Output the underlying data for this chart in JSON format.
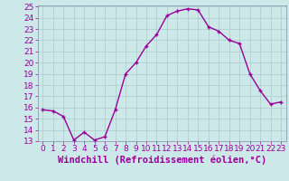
{
  "hours": [
    0,
    1,
    2,
    3,
    4,
    5,
    6,
    7,
    8,
    9,
    10,
    11,
    12,
    13,
    14,
    15,
    16,
    17,
    18,
    19,
    20,
    21,
    22,
    23
  ],
  "values": [
    15.8,
    15.7,
    15.2,
    13.1,
    13.8,
    13.1,
    13.4,
    15.8,
    19.0,
    20.0,
    21.5,
    22.5,
    24.2,
    24.6,
    24.8,
    24.7,
    23.2,
    22.8,
    22.0,
    21.7,
    19.0,
    17.5,
    16.3,
    16.5
  ],
  "line_color": "#990099",
  "marker": "+",
  "bg_color": "#cce8e8",
  "grid_color": "#aacccc",
  "xlabel": "Windchill (Refroidissement éolien,°C)",
  "xlabel_color": "#990099",
  "ylim": [
    13,
    25
  ],
  "xlim_min": -0.5,
  "xlim_max": 23.5,
  "yticks": [
    13,
    14,
    15,
    16,
    17,
    18,
    19,
    20,
    21,
    22,
    23,
    24,
    25
  ],
  "xticks": [
    0,
    1,
    2,
    3,
    4,
    5,
    6,
    7,
    8,
    9,
    10,
    11,
    12,
    13,
    14,
    15,
    16,
    17,
    18,
    19,
    20,
    21,
    22,
    23
  ],
  "tick_label_color": "#990099",
  "tick_label_fontsize": 6.5,
  "xlabel_fontsize": 7.5,
  "spine_color": "#8888aa",
  "linewidth": 1.0,
  "markersize": 3.5
}
